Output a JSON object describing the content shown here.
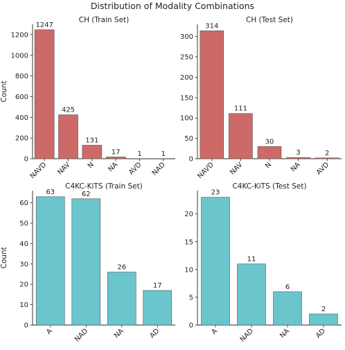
{
  "figure": {
    "title": "Distribution of Modality Combinations",
    "colors": {
      "red": "#cd6a67",
      "teal": "#6ac5cd",
      "edge": "#555555",
      "axis": "#222222"
    }
  },
  "chart_data": [
    {
      "type": "bar",
      "title": "CH (Train Set)",
      "xlabel": "",
      "ylabel": "Count",
      "categories": [
        "NAVD",
        "NAV",
        "N",
        "NA",
        "AVD",
        "NAD"
      ],
      "values": [
        1247,
        425,
        131,
        17,
        1,
        1
      ],
      "ylim": [
        0,
        1300
      ],
      "yticks": [
        0,
        200,
        400,
        600,
        800,
        1000,
        1200
      ],
      "color": "#cd6a67",
      "grid": false
    },
    {
      "type": "bar",
      "title": "CH (Test Set)",
      "xlabel": "",
      "ylabel": "",
      "categories": [
        "NAVD",
        "NAV",
        "N",
        "NA",
        "AVD"
      ],
      "values": [
        314,
        111,
        30,
        3,
        2
      ],
      "ylim": [
        0,
        330
      ],
      "yticks": [
        0,
        50,
        100,
        150,
        200,
        250,
        300
      ],
      "color": "#cd6a67",
      "grid": false
    },
    {
      "type": "bar",
      "title": "C4KC-KiTS (Train Set)",
      "xlabel": "",
      "ylabel": "Count",
      "categories": [
        "A",
        "NAD",
        "NA",
        "AD"
      ],
      "values": [
        63,
        62,
        26,
        17
      ],
      "ylim": [
        0,
        66
      ],
      "yticks": [
        0,
        10,
        20,
        30,
        40,
        50,
        60
      ],
      "color": "#6ac5cd",
      "grid": false
    },
    {
      "type": "bar",
      "title": "C4KC-KiTS (Test Set)",
      "xlabel": "",
      "ylabel": "",
      "categories": [
        "A",
        "NAD",
        "NA",
        "AD"
      ],
      "values": [
        23,
        11,
        6,
        2
      ],
      "ylim": [
        0,
        24.2
      ],
      "yticks": [
        0,
        5,
        10,
        15,
        20
      ],
      "color": "#6ac5cd",
      "grid": false
    }
  ]
}
